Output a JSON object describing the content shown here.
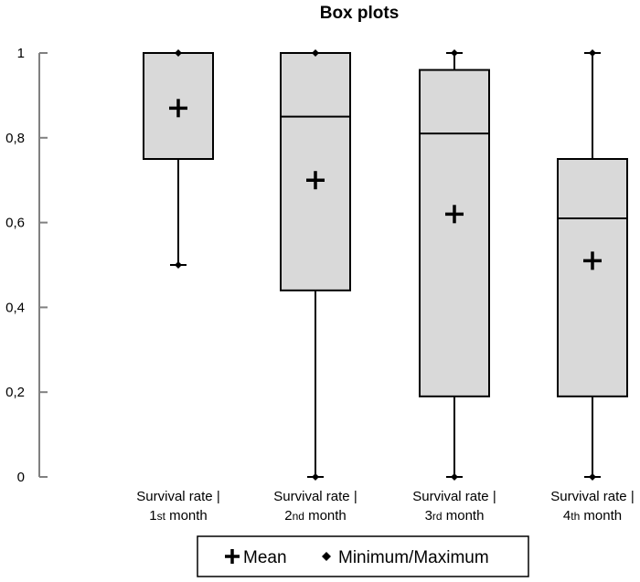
{
  "chart_data": {
    "type": "box",
    "title": "Box plots",
    "xlabel": "",
    "ylabel": "",
    "ylim": [
      0,
      1
    ],
    "yticks": [
      0,
      0.2,
      0.4,
      0.6,
      0.8,
      1
    ],
    "ytick_labels": [
      "0",
      "0,2",
      "0,4",
      "0,6",
      "0,8",
      "1"
    ],
    "grid": false,
    "legend_position": "bottom",
    "categories": [
      {
        "prefix": "Survival rate |",
        "num": "1",
        "suffix": "st",
        "unit": "month"
      },
      {
        "prefix": "Survival rate |",
        "num": "2",
        "suffix": "nd",
        "unit": "month"
      },
      {
        "prefix": "Survival rate |",
        "num": "3",
        "suffix": "rd",
        "unit": "month"
      },
      {
        "prefix": "Survival rate |",
        "num": "4",
        "suffix": "th",
        "unit": "month"
      }
    ],
    "boxes": [
      {
        "min": 0.5,
        "q1": 0.75,
        "median": 1.0,
        "q3": 1.0,
        "max": 1.0,
        "mean": 0.87
      },
      {
        "min": 0.0,
        "q1": 0.44,
        "median": 0.85,
        "q3": 1.0,
        "max": 1.0,
        "mean": 0.7
      },
      {
        "min": 0.0,
        "q1": 0.19,
        "median": 0.81,
        "q3": 0.96,
        "max": 1.0,
        "mean": 0.62
      },
      {
        "min": 0.0,
        "q1": 0.19,
        "median": 0.61,
        "q3": 0.75,
        "max": 1.0,
        "mean": 0.51
      }
    ],
    "legend": [
      {
        "marker": "+",
        "label": "Mean"
      },
      {
        "marker": "◆",
        "label": "Minimum/Maximum"
      }
    ],
    "colors": {
      "box_fill": "#d9d9d9",
      "stroke": "#000000",
      "axis": "#808080"
    }
  }
}
